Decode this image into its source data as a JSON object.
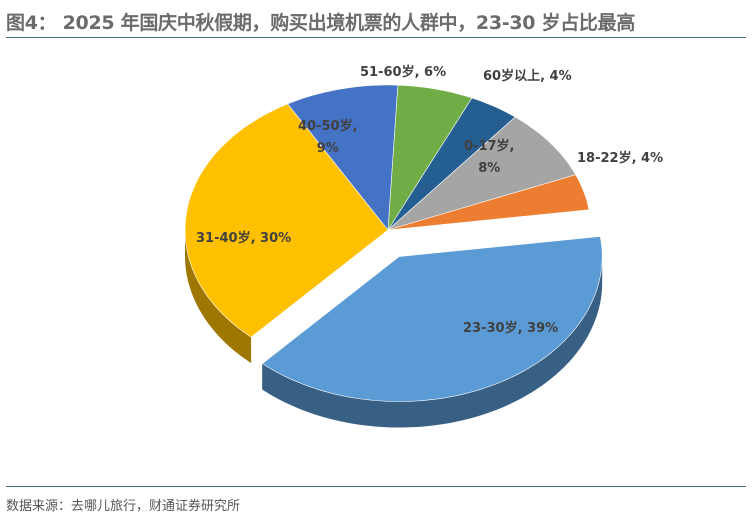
{
  "title": "图4： 2025 年国庆中秋假期，购买出境机票的人群中，23-30 岁占比最高",
  "source": "数据来源：去哪儿旅行，财通证券研究所",
  "chart_data": {
    "type": "pie",
    "style": "3d-exploded",
    "categories": [
      "23-30岁",
      "31-40岁",
      "40-50岁",
      "51-60岁",
      "60岁以上",
      "0-17岁",
      "18-22岁"
    ],
    "values": [
      39,
      30,
      9,
      6,
      4,
      8,
      4
    ],
    "unit": "%",
    "colors": [
      "#5b9bd5",
      "#ffc000",
      "#4472c4",
      "#70ad47",
      "#255e91",
      "#a5a5a5",
      "#ed7d31"
    ],
    "exploded": "23-30岁",
    "data_labels": [
      "23-30岁, 39%",
      "31-40岁, 30%",
      "40-50岁,\n9%",
      "51-60岁, 6%",
      "60岁以上, 4%",
      "0-17岁,\n8%",
      "18-22岁, 4%"
    ]
  }
}
